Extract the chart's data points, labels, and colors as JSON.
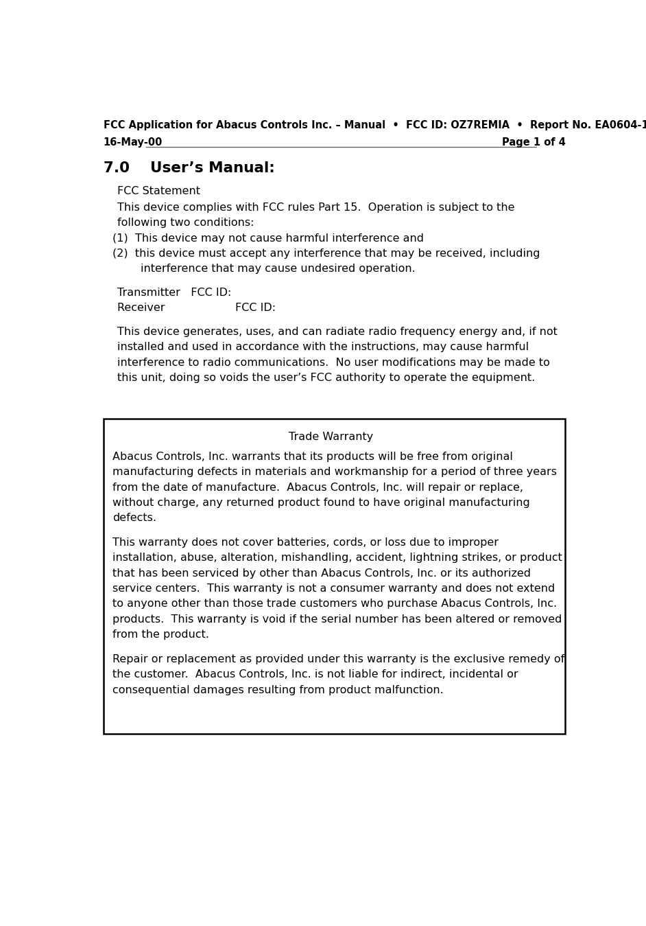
{
  "header_line1": "FCC Application for Abacus Controls Inc. – Manual  •  FCC ID: OZ7REMIA  •  Report No. EA0604-1",
  "header_line2_left": "16-May-00",
  "header_line2_right": "Page 1 of 4",
  "section_heading": "7.0    User’s Manual:",
  "fcc_statement_heading": "FCC Statement",
  "fcc_para1_line1": "This device complies with FCC rules Part 15.  Operation is subject to the",
  "fcc_para1_line2": "following two conditions:",
  "fcc_item1": "(1)  This device may not cause harmful interference and",
  "fcc_item2_line1": "(2)  this device must accept any interference that may be received, including",
  "fcc_item2_line2": "        interference that may cause undesired operation.",
  "transmitter_line": "Transmitter   FCC ID:",
  "receiver_line": "Receiver                    FCC ID:",
  "fcc_para2_line1": "This device generates, uses, and can radiate radio frequency energy and, if not",
  "fcc_para2_line2": "installed and used in accordance with the instructions, may cause harmful",
  "fcc_para2_line3": "interference to radio communications.  No user modifications may be made to",
  "fcc_para2_line4": "this unit, doing so voids the user’s FCC authority to operate the equipment.",
  "warranty_title": "Trade Warranty",
  "warranty_para1_lines": [
    "Abacus Controls, Inc. warrants that its products will be free from original",
    "manufacturing defects in materials and workmanship for a period of three years",
    "from the date of manufacture.  Abacus Controls, Inc. will repair or replace,",
    "without charge, any returned product found to have original manufacturing",
    "defects."
  ],
  "warranty_para2_lines": [
    "This warranty does not cover batteries, cords, or loss due to improper",
    "installation, abuse, alteration, mishandling, accident, lightning strikes, or product",
    "that has been serviced by other than Abacus Controls, Inc. or its authorized",
    "service centers.  This warranty is not a consumer warranty and does not extend",
    "to anyone other than those trade customers who purchase Abacus Controls, Inc.",
    "products.  This warranty is void if the serial number has been altered or removed",
    "from the product."
  ],
  "warranty_para3_lines": [
    "Repair or replacement as provided under this warranty is the exclusive remedy of",
    "the customer.  Abacus Controls, Inc. is not liable for indirect, incidental or",
    "consequential damages resulting from product malfunction."
  ],
  "bg_color": "#ffffff",
  "text_color": "#000000",
  "header_fontsize": 10.5,
  "body_fontsize": 11.5,
  "section_fontsize": 15.5
}
